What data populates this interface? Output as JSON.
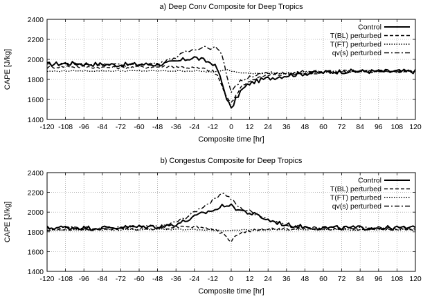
{
  "chart_data": [
    {
      "type": "line",
      "title": "a) Deep Conv Composite for Deep Tropics",
      "xlabel": "Composite time [hr]",
      "ylabel": "CAPE [J/kg]",
      "xlim": [
        -120,
        120
      ],
      "ylim": [
        1400,
        2400
      ],
      "xticks": [
        -120,
        -108,
        -96,
        -84,
        -72,
        -60,
        -48,
        -36,
        -24,
        -12,
        0,
        12,
        24,
        36,
        48,
        60,
        72,
        84,
        96,
        108,
        120
      ],
      "yticks": [
        1400,
        1600,
        1800,
        2000,
        2200,
        2400
      ],
      "grid": true,
      "legend_position": "top-right",
      "x": [
        -120,
        -108,
        -96,
        -84,
        -72,
        -60,
        -48,
        -42,
        -36,
        -30,
        -24,
        -18,
        -12,
        -9,
        -6,
        -3,
        0,
        3,
        6,
        12,
        18,
        24,
        36,
        48,
        60,
        72,
        84,
        96,
        108,
        120
      ],
      "series": [
        {
          "name": "Control",
          "style": "solid",
          "width": 2.0,
          "values": [
            1950,
            1960,
            1955,
            1950,
            1945,
            1950,
            1950,
            1960,
            1975,
            2000,
            2020,
            1990,
            1960,
            1900,
            1760,
            1620,
            1500,
            1600,
            1680,
            1760,
            1790,
            1810,
            1840,
            1860,
            1870,
            1880,
            1880,
            1880,
            1880,
            1880
          ]
        },
        {
          "name": "T(BL) perturbed",
          "style": "dashed",
          "width": 1.4,
          "values": [
            1920,
            1930,
            1925,
            1920,
            1918,
            1922,
            1925,
            1930,
            1930,
            1920,
            1915,
            1905,
            1880,
            1840,
            1730,
            1620,
            1560,
            1640,
            1720,
            1790,
            1820,
            1840,
            1850,
            1860,
            1870,
            1880,
            1880,
            1880,
            1880,
            1880
          ]
        },
        {
          "name": "T(FT) perturbed",
          "style": "dotted",
          "width": 1.4,
          "values": [
            1880,
            1885,
            1885,
            1885,
            1885,
            1885,
            1885,
            1885,
            1885,
            1885,
            1885,
            1880,
            1870,
            1880,
            1890,
            1900,
            1885,
            1880,
            1870,
            1860,
            1860,
            1860,
            1860,
            1865,
            1870,
            1875,
            1880,
            1880,
            1880,
            1880
          ]
        },
        {
          "name": "qv(s) perturbed",
          "style": "dashdot",
          "width": 1.4,
          "values": [
            1950,
            1960,
            1955,
            1950,
            1945,
            1950,
            1960,
            1990,
            2020,
            2070,
            2100,
            2130,
            2110,
            2120,
            2030,
            1850,
            1680,
            1740,
            1780,
            1830,
            1850,
            1860,
            1870,
            1875,
            1880,
            1880,
            1880,
            1880,
            1880,
            1880
          ]
        }
      ]
    },
    {
      "type": "line",
      "title": "b) Congestus Composite for Deep Tropics",
      "xlabel": "Composite time [hr]",
      "ylabel": "CAPE [J/kg]",
      "xlim": [
        -120,
        120
      ],
      "ylim": [
        1400,
        2400
      ],
      "xticks": [
        -120,
        -108,
        -96,
        -84,
        -72,
        -60,
        -48,
        -36,
        -24,
        -12,
        0,
        12,
        24,
        36,
        48,
        60,
        72,
        84,
        96,
        108,
        120
      ],
      "yticks": [
        1400,
        1600,
        1800,
        2000,
        2200,
        2400
      ],
      "grid": true,
      "legend_position": "top-right",
      "x": [
        -120,
        -108,
        -96,
        -84,
        -72,
        -60,
        -48,
        -42,
        -36,
        -30,
        -24,
        -18,
        -12,
        -9,
        -6,
        -3,
        0,
        3,
        6,
        12,
        18,
        24,
        36,
        48,
        60,
        72,
        84,
        96,
        108,
        120
      ],
      "series": [
        {
          "name": "Control",
          "style": "solid",
          "width": 2.0,
          "values": [
            1840,
            1845,
            1840,
            1840,
            1845,
            1850,
            1855,
            1860,
            1880,
            1910,
            1950,
            1990,
            2020,
            2030,
            2060,
            2080,
            2060,
            2040,
            2020,
            1990,
            1960,
            1920,
            1870,
            1850,
            1840,
            1840,
            1840,
            1840,
            1840,
            1840
          ]
        },
        {
          "name": "T(BL) perturbed",
          "style": "dashed",
          "width": 1.4,
          "values": [
            1820,
            1825,
            1825,
            1825,
            1830,
            1830,
            1835,
            1840,
            1850,
            1860,
            1850,
            1840,
            1830,
            1810,
            1780,
            1740,
            1710,
            1760,
            1790,
            1810,
            1820,
            1830,
            1830,
            1830,
            1830,
            1830,
            1830,
            1830,
            1830,
            1830
          ]
        },
        {
          "name": "T(FT) perturbed",
          "style": "dotted",
          "width": 1.4,
          "values": [
            1820,
            1820,
            1820,
            1820,
            1820,
            1822,
            1825,
            1825,
            1825,
            1825,
            1825,
            1820,
            1820,
            1815,
            1810,
            1810,
            1815,
            1820,
            1820,
            1820,
            1820,
            1820,
            1822,
            1822,
            1822,
            1822,
            1822,
            1822,
            1822,
            1822
          ]
        },
        {
          "name": "qv(s) perturbed",
          "style": "dashdot",
          "width": 1.4,
          "values": [
            1840,
            1845,
            1840,
            1840,
            1845,
            1850,
            1855,
            1870,
            1900,
            1940,
            2000,
            2060,
            2120,
            2160,
            2200,
            2170,
            2130,
            2080,
            2040,
            2010,
            1970,
            1930,
            1870,
            1850,
            1840,
            1840,
            1840,
            1840,
            1840,
            1840
          ]
        }
      ]
    }
  ]
}
